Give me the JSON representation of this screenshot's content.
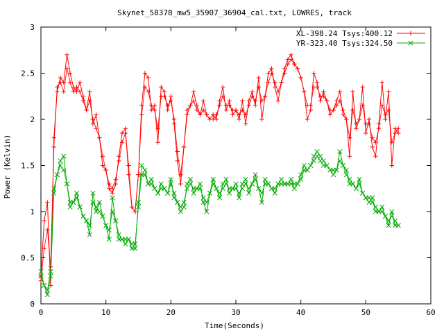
{
  "chart_data": {
    "type": "line",
    "title": "Skynet_58378_mw5_35907_36904_cal.txt, LOWRES, track",
    "xlabel": "Time(Seconds)",
    "ylabel": "Power (Kelvin)",
    "xlim": [
      0,
      60
    ],
    "ylim": [
      0,
      3
    ],
    "x_ticks": [
      "0",
      "10",
      "20",
      "30",
      "40",
      "50",
      "60"
    ],
    "y_ticks": [
      "0",
      "0.5",
      "1",
      "1.5",
      "2",
      "2.5",
      "3"
    ],
    "x_tick_values": [
      0,
      10,
      20,
      30,
      40,
      50,
      60
    ],
    "y_tick_values": [
      0,
      0.5,
      1,
      1.5,
      2,
      2.5,
      3
    ],
    "grid": false,
    "legend_position": "top-right",
    "series": [
      {
        "name": "XL-398.24 Tsys:400.12",
        "color": "#ff0000",
        "marker": "plus",
        "x": [
          0,
          0.5,
          1,
          1.5,
          2,
          2.5,
          3,
          3.5,
          4,
          4.5,
          5,
          5.5,
          6,
          6.5,
          7,
          7.5,
          8,
          8.5,
          9,
          9.5,
          10,
          10.5,
          11,
          11.5,
          12,
          12.5,
          13,
          13.5,
          14,
          14.5,
          15,
          15.5,
          16,
          16.5,
          17,
          17.5,
          18,
          18.5,
          19,
          19.5,
          20,
          20.5,
          21,
          21.5,
          22,
          22.5,
          23,
          23.5,
          24,
          24.5,
          25,
          25.5,
          26,
          26.5,
          27,
          27.5,
          28,
          28.5,
          29,
          29.5,
          30,
          30.5,
          31,
          31.5,
          32,
          32.5,
          33,
          33.5,
          34,
          34.5,
          35,
          35.5,
          36,
          36.5,
          37,
          37.5,
          38,
          38.5,
          39,
          39.5,
          40,
          40.5,
          41,
          41.5,
          42,
          42.5,
          43,
          43.5,
          44,
          44.5,
          45,
          45.5,
          46,
          46.5,
          47,
          47.5,
          48,
          48.5,
          49,
          49.5,
          50,
          50.5,
          51,
          51.5,
          52,
          52.5,
          53,
          53.5,
          54,
          54.5,
          55
        ],
        "y": [
          0.3,
          0.9,
          1.1,
          0.2,
          1.8,
          2.3,
          2.45,
          2.4,
          2.7,
          2.5,
          2.35,
          2.3,
          2.4,
          2.25,
          2.1,
          2.3,
          1.95,
          2.05,
          1.8,
          1.5,
          1.45,
          1.25,
          1.2,
          1.3,
          1.6,
          1.85,
          1.9,
          1.4,
          1.05,
          1.0,
          1.4,
          2.15,
          2.5,
          2.45,
          2.1,
          2.15,
          1.75,
          2.35,
          2.3,
          2.1,
          2.25,
          1.95,
          1.55,
          1.3,
          1.7,
          2.1,
          2.15,
          2.3,
          2.15,
          2.05,
          2.2,
          2.05,
          2.0,
          2.05,
          2.0,
          2.2,
          2.35,
          2.1,
          2.2,
          2.05,
          2.1,
          2.0,
          2.2,
          1.95,
          2.2,
          2.3,
          2.15,
          2.45,
          2.0,
          2.25,
          2.5,
          2.55,
          2.35,
          2.2,
          2.4,
          2.55,
          2.65,
          2.7,
          2.6,
          2.55,
          2.45,
          2.3,
          2.0,
          2.1,
          2.5,
          2.4,
          2.2,
          2.3,
          2.2,
          2.05,
          2.1,
          2.2,
          2.3,
          2.05,
          2.0,
          1.6,
          2.3,
          1.9,
          2.0,
          2.35,
          1.85,
          2.0,
          1.7,
          1.6,
          1.95,
          2.4,
          2.0,
          2.3,
          1.5,
          1.9,
          1.85
        ],
        "trend": [
          0.25,
          0.6,
          0.8,
          0.4,
          1.7,
          2.35,
          2.4,
          2.3,
          2.55,
          2.4,
          2.3,
          2.35,
          2.3,
          2.2,
          2.1,
          2.2,
          2.0,
          1.9,
          1.8,
          1.6,
          1.45,
          1.3,
          1.25,
          1.35,
          1.55,
          1.75,
          1.85,
          1.5,
          1.05,
          1.0,
          1.4,
          2.05,
          2.35,
          2.3,
          2.15,
          2.1,
          1.9,
          2.25,
          2.25,
          2.15,
          2.2,
          2.0,
          1.65,
          1.4,
          1.7,
          2.05,
          2.15,
          2.2,
          2.1,
          2.05,
          2.1,
          2.05,
          2.0,
          2.0,
          2.05,
          2.15,
          2.25,
          2.15,
          2.15,
          2.1,
          2.1,
          2.05,
          2.1,
          2.05,
          2.15,
          2.25,
          2.2,
          2.35,
          2.2,
          2.25,
          2.4,
          2.5,
          2.4,
          2.3,
          2.4,
          2.5,
          2.6,
          2.65,
          2.6,
          2.55,
          2.45,
          2.3,
          2.15,
          2.15,
          2.35,
          2.35,
          2.25,
          2.25,
          2.2,
          2.1,
          2.1,
          2.15,
          2.2,
          2.1,
          2.0,
          1.8,
          2.1,
          1.95,
          2.0,
          2.15,
          1.95,
          1.95,
          1.8,
          1.75,
          1.9,
          2.15,
          2.05,
          2.1,
          1.75,
          1.85,
          1.9
        ]
      },
      {
        "name": "YR-323.40 Tsys:324.50",
        "color": "#00aa00",
        "marker": "x",
        "x": [
          0,
          0.5,
          1,
          1.5,
          2,
          2.5,
          3,
          3.5,
          4,
          4.5,
          5,
          5.5,
          6,
          6.5,
          7,
          7.5,
          8,
          8.5,
          9,
          9.5,
          10,
          10.5,
          11,
          11.5,
          12,
          12.5,
          13,
          13.5,
          14,
          14.5,
          15,
          15.5,
          16,
          16.5,
          17,
          17.5,
          18,
          18.5,
          19,
          19.5,
          20,
          20.5,
          21,
          21.5,
          22,
          22.5,
          23,
          23.5,
          24,
          24.5,
          25,
          25.5,
          26,
          26.5,
          27,
          27.5,
          28,
          28.5,
          29,
          29.5,
          30,
          30.5,
          31,
          31.5,
          32,
          32.5,
          33,
          33.5,
          34,
          34.5,
          35,
          35.5,
          36,
          36.5,
          37,
          37.5,
          38,
          38.5,
          39,
          39.5,
          40,
          40.5,
          41,
          41.5,
          42,
          42.5,
          43,
          43.5,
          44,
          44.5,
          45,
          45.5,
          46,
          46.5,
          47,
          47.5,
          48,
          48.5,
          49,
          49.5,
          50,
          50.5,
          51,
          51.5,
          52,
          52.5,
          53,
          53.5,
          54,
          54.5,
          55
        ],
        "y": [
          0.35,
          0.2,
          0.1,
          0.3,
          1.2,
          1.4,
          1.55,
          1.6,
          1.3,
          1.05,
          1.1,
          1.2,
          1.05,
          0.95,
          0.9,
          0.75,
          1.2,
          1.0,
          1.1,
          0.95,
          0.85,
          0.7,
          1.15,
          0.9,
          0.7,
          0.7,
          0.65,
          0.7,
          0.6,
          0.6,
          1.1,
          1.5,
          1.45,
          1.3,
          1.35,
          1.25,
          1.2,
          1.3,
          1.25,
          1.2,
          1.35,
          1.15,
          1.1,
          1.0,
          1.05,
          1.3,
          1.35,
          1.2,
          1.25,
          1.3,
          1.1,
          1.0,
          1.2,
          1.35,
          1.25,
          1.15,
          1.3,
          1.35,
          1.2,
          1.25,
          1.3,
          1.15,
          1.3,
          1.35,
          1.2,
          1.3,
          1.4,
          1.25,
          1.1,
          1.35,
          1.3,
          1.25,
          1.2,
          1.3,
          1.35,
          1.3,
          1.3,
          1.35,
          1.25,
          1.3,
          1.4,
          1.5,
          1.45,
          1.5,
          1.6,
          1.65,
          1.6,
          1.55,
          1.5,
          1.45,
          1.4,
          1.45,
          1.65,
          1.5,
          1.45,
          1.3,
          1.3,
          1.25,
          1.35,
          1.2,
          1.15,
          1.1,
          1.15,
          1.0,
          1.0,
          1.05,
          0.95,
          0.85,
          1.0,
          0.85,
          0.85
        ],
        "trend": [
          0.3,
          0.2,
          0.15,
          0.35,
          1.25,
          1.4,
          1.5,
          1.45,
          1.3,
          1.1,
          1.1,
          1.15,
          1.05,
          0.95,
          0.9,
          0.85,
          1.1,
          1.05,
          1.0,
          0.95,
          0.85,
          0.8,
          1.0,
          0.9,
          0.75,
          0.7,
          0.7,
          0.7,
          0.65,
          0.65,
          1.05,
          1.4,
          1.4,
          1.3,
          1.3,
          1.25,
          1.2,
          1.25,
          1.25,
          1.2,
          1.3,
          1.2,
          1.1,
          1.05,
          1.1,
          1.25,
          1.3,
          1.25,
          1.25,
          1.25,
          1.15,
          1.1,
          1.2,
          1.3,
          1.25,
          1.2,
          1.25,
          1.3,
          1.25,
          1.25,
          1.25,
          1.2,
          1.25,
          1.3,
          1.25,
          1.3,
          1.35,
          1.25,
          1.2,
          1.3,
          1.3,
          1.25,
          1.25,
          1.3,
          1.3,
          1.3,
          1.3,
          1.3,
          1.3,
          1.3,
          1.35,
          1.45,
          1.45,
          1.5,
          1.55,
          1.6,
          1.55,
          1.5,
          1.5,
          1.45,
          1.45,
          1.45,
          1.55,
          1.5,
          1.4,
          1.35,
          1.3,
          1.25,
          1.3,
          1.2,
          1.15,
          1.15,
          1.1,
          1.05,
          1.0,
          1.0,
          0.95,
          0.9,
          0.95,
          0.9,
          0.85
        ]
      }
    ]
  }
}
